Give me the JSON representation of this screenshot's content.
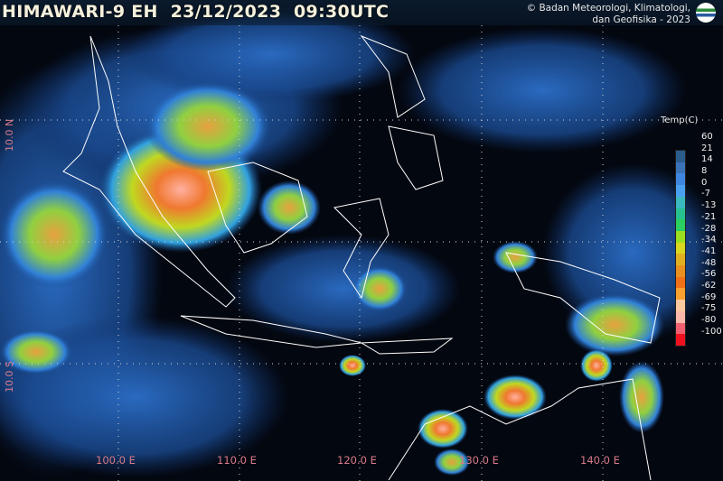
{
  "header": {
    "title": "HIMAWARI-9 EH  23/12/2023  09:30UTC"
  },
  "credit": {
    "line1": "© Badan Meteorologi, Klimatologi,",
    "line2": "dan Geofisika -  2023",
    "logo_text": "BMKG"
  },
  "longitude_labels": [
    "100.0 E",
    "110.0 E",
    "120.0 E",
    "130.0 E",
    "140.0 E"
  ],
  "latitude_labels": [
    "10.0 N",
    "10.0 S"
  ],
  "legend": {
    "title": "Temp(C)",
    "labels": [
      "60",
      "21",
      "14",
      "8",
      "0",
      "-7",
      "-13",
      "-21",
      "-28",
      "-34",
      "-41",
      "-48",
      "-56",
      "-62",
      "-69",
      "-75",
      "-80",
      "-100"
    ],
    "colors": [
      "#2a5c8c",
      "#3a72b8",
      "#3f86e0",
      "#4aa0f0",
      "#39b8c0",
      "#27c090",
      "#2ad060",
      "#9ae020",
      "#d8d820",
      "#e0b020",
      "#e89020",
      "#f07018",
      "#f8a030",
      "#fcc8a0",
      "#fcb8a8",
      "#f06070",
      "#f01020"
    ]
  },
  "colors": {
    "coast": "#ffffff",
    "grid": "#d8d8d8",
    "label": "#d97a8a"
  }
}
